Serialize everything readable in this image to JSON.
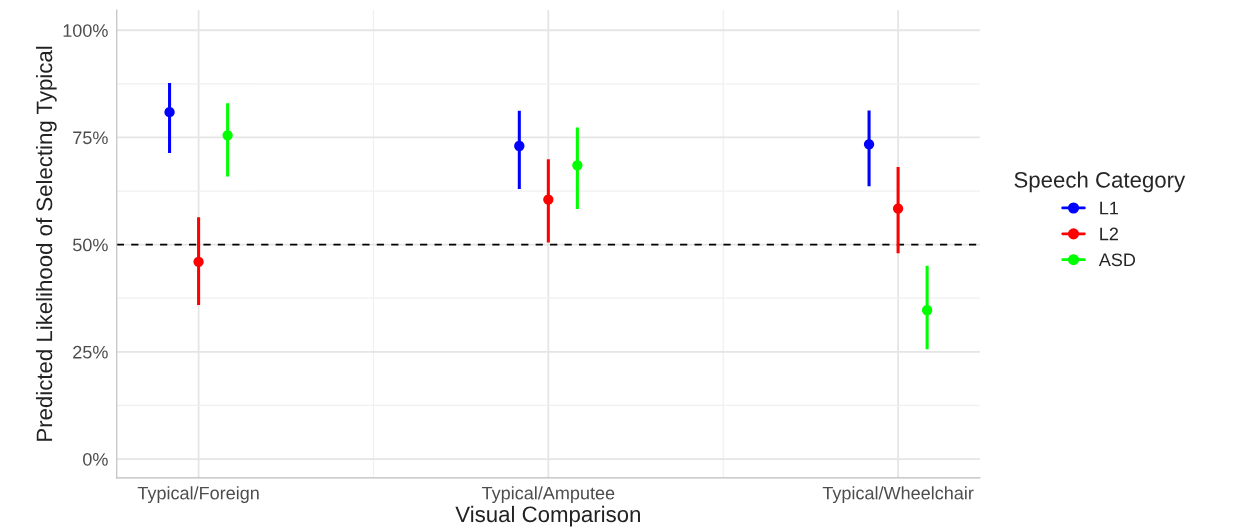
{
  "chart_data": {
    "type": "scatter",
    "xlabel": "Visual Comparison",
    "ylabel": "Predicted Likelihood of Selecting Typical",
    "legend_title": "Speech Category",
    "categories": [
      "Typical/Foreign",
      "Typical/Amputee",
      "Typical/Wheelchair"
    ],
    "series": [
      {
        "name": "L1",
        "color": "#0000ff",
        "values": [
          80.9,
          73.0,
          73.4
        ],
        "errors": [
          [
            71.4,
            87.7
          ],
          [
            63.0,
            81.2
          ],
          [
            63.6,
            81.3
          ]
        ]
      },
      {
        "name": "L2",
        "color": "#ff0000",
        "values": [
          46.0,
          60.5,
          58.4
        ],
        "errors": [
          [
            35.9,
            56.4
          ],
          [
            50.5,
            69.9
          ],
          [
            48.0,
            68.1
          ]
        ]
      },
      {
        "name": "ASD",
        "color": "#00ff00",
        "values": [
          75.5,
          68.5,
          34.7
        ],
        "errors": [
          [
            65.9,
            83.0
          ],
          [
            58.3,
            77.3
          ],
          [
            25.6,
            45.1
          ]
        ]
      }
    ],
    "ylim": [
      -4.4,
      104.7
    ],
    "yticks": [
      {
        "value": 0,
        "label": "0%"
      },
      {
        "value": 25,
        "label": "25%"
      },
      {
        "value": 50,
        "label": "50%"
      },
      {
        "value": 75,
        "label": "75%"
      },
      {
        "value": 100,
        "label": "100%"
      }
    ],
    "ref_lines": [
      {
        "axis": "y",
        "value": 50,
        "color": "#000000",
        "line_style": "dashed"
      }
    ],
    "grid": true,
    "legend": "right",
    "marker": "circle"
  }
}
